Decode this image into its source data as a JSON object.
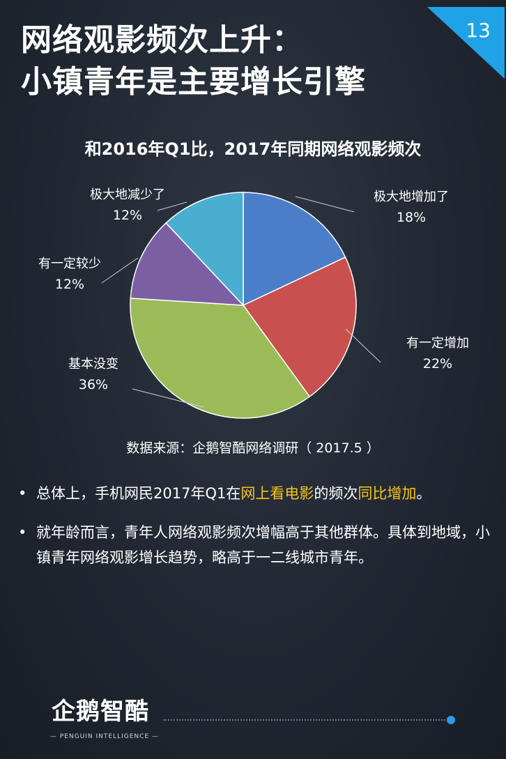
{
  "header": {
    "title_line1": "网络观影频次上升：",
    "title_line2": "小镇青年是主要增长引擎",
    "page_number": "13",
    "corner_color": "#1fa3e6"
  },
  "chart_data": {
    "type": "pie",
    "title": "和2016年Q1比，2017年同期网络观影频次",
    "slices": [
      {
        "label": "极大地增加了",
        "value": 18,
        "value_label": "18%",
        "color": "#4a7ec8"
      },
      {
        "label": "有一定增加",
        "value": 22,
        "value_label": "22%",
        "color": "#c8504e"
      },
      {
        "label": "基本没变",
        "value": 36,
        "value_label": "36%",
        "color": "#9bbb59"
      },
      {
        "label": "有一定较少",
        "value": 12,
        "value_label": "12%",
        "color": "#7c5fa3"
      },
      {
        "label": "极大地减少了",
        "value": 12,
        "value_label": "12%",
        "color": "#4aaed0"
      }
    ],
    "start_angle_deg": 0,
    "direction": "clockwise"
  },
  "source": "数据来源：企鹅智酷网络调研（ 2017.5 ）",
  "bullets": [
    {
      "dot": "•",
      "parts": [
        {
          "text": "总体上，手机网民2017年Q1在",
          "highlight": false
        },
        {
          "text": "网上看电影",
          "highlight": true
        },
        {
          "text": "的频次",
          "highlight": false
        },
        {
          "text": "同比增加",
          "highlight": true
        },
        {
          "text": "。",
          "highlight": false
        }
      ]
    },
    {
      "dot": "•",
      "parts": [
        {
          "text": "就年龄而言，青年人网络观影频次增幅高于其他群体。具体到地域，小镇青年网络观影增长趋势，略高于一二线城市青年。",
          "highlight": false
        }
      ]
    }
  ],
  "footer": {
    "logo_text": "企鹅智酷",
    "logo_subtitle": "— PENGUIN INTELLIGENCE —",
    "accent_color": "#2f9be0"
  }
}
